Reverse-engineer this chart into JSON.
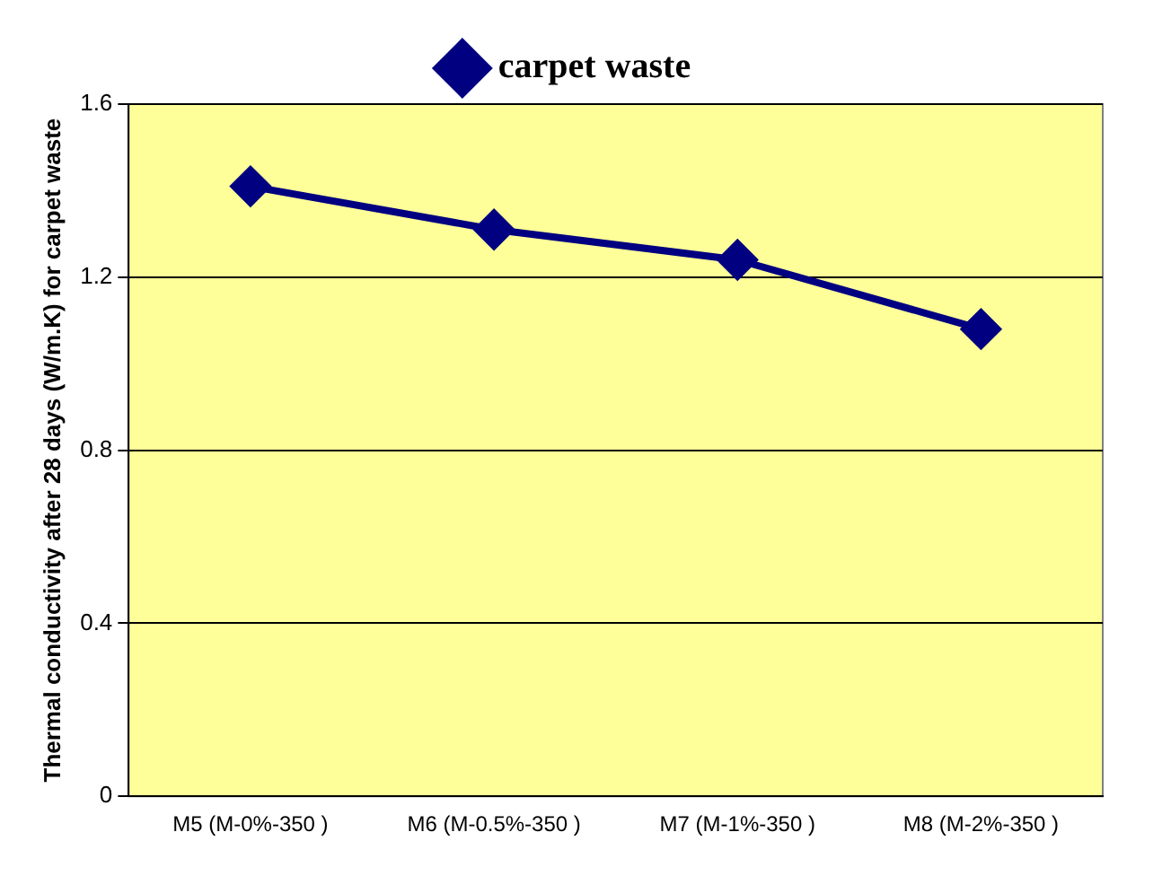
{
  "chart_data": {
    "type": "line",
    "ylabel": "Thermal conductivity after 28 days (W/m.K) for carpet waste",
    "categories": [
      "M5 (M-0%-350 )",
      "M6 (M-0.5%-350 )",
      "M7 (M-1%-350 )",
      "M8 (M-2%-350 )"
    ],
    "series": [
      {
        "name": "carpet waste",
        "color": "#000080",
        "values": [
          1.41,
          1.31,
          1.24,
          1.08
        ]
      }
    ],
    "ylim": [
      0,
      1.6
    ],
    "yticks": [
      0,
      0.4,
      0.8,
      1.2,
      1.6
    ],
    "grid": "y",
    "legend": "top",
    "marker": "diamond",
    "line_style": "solid"
  }
}
